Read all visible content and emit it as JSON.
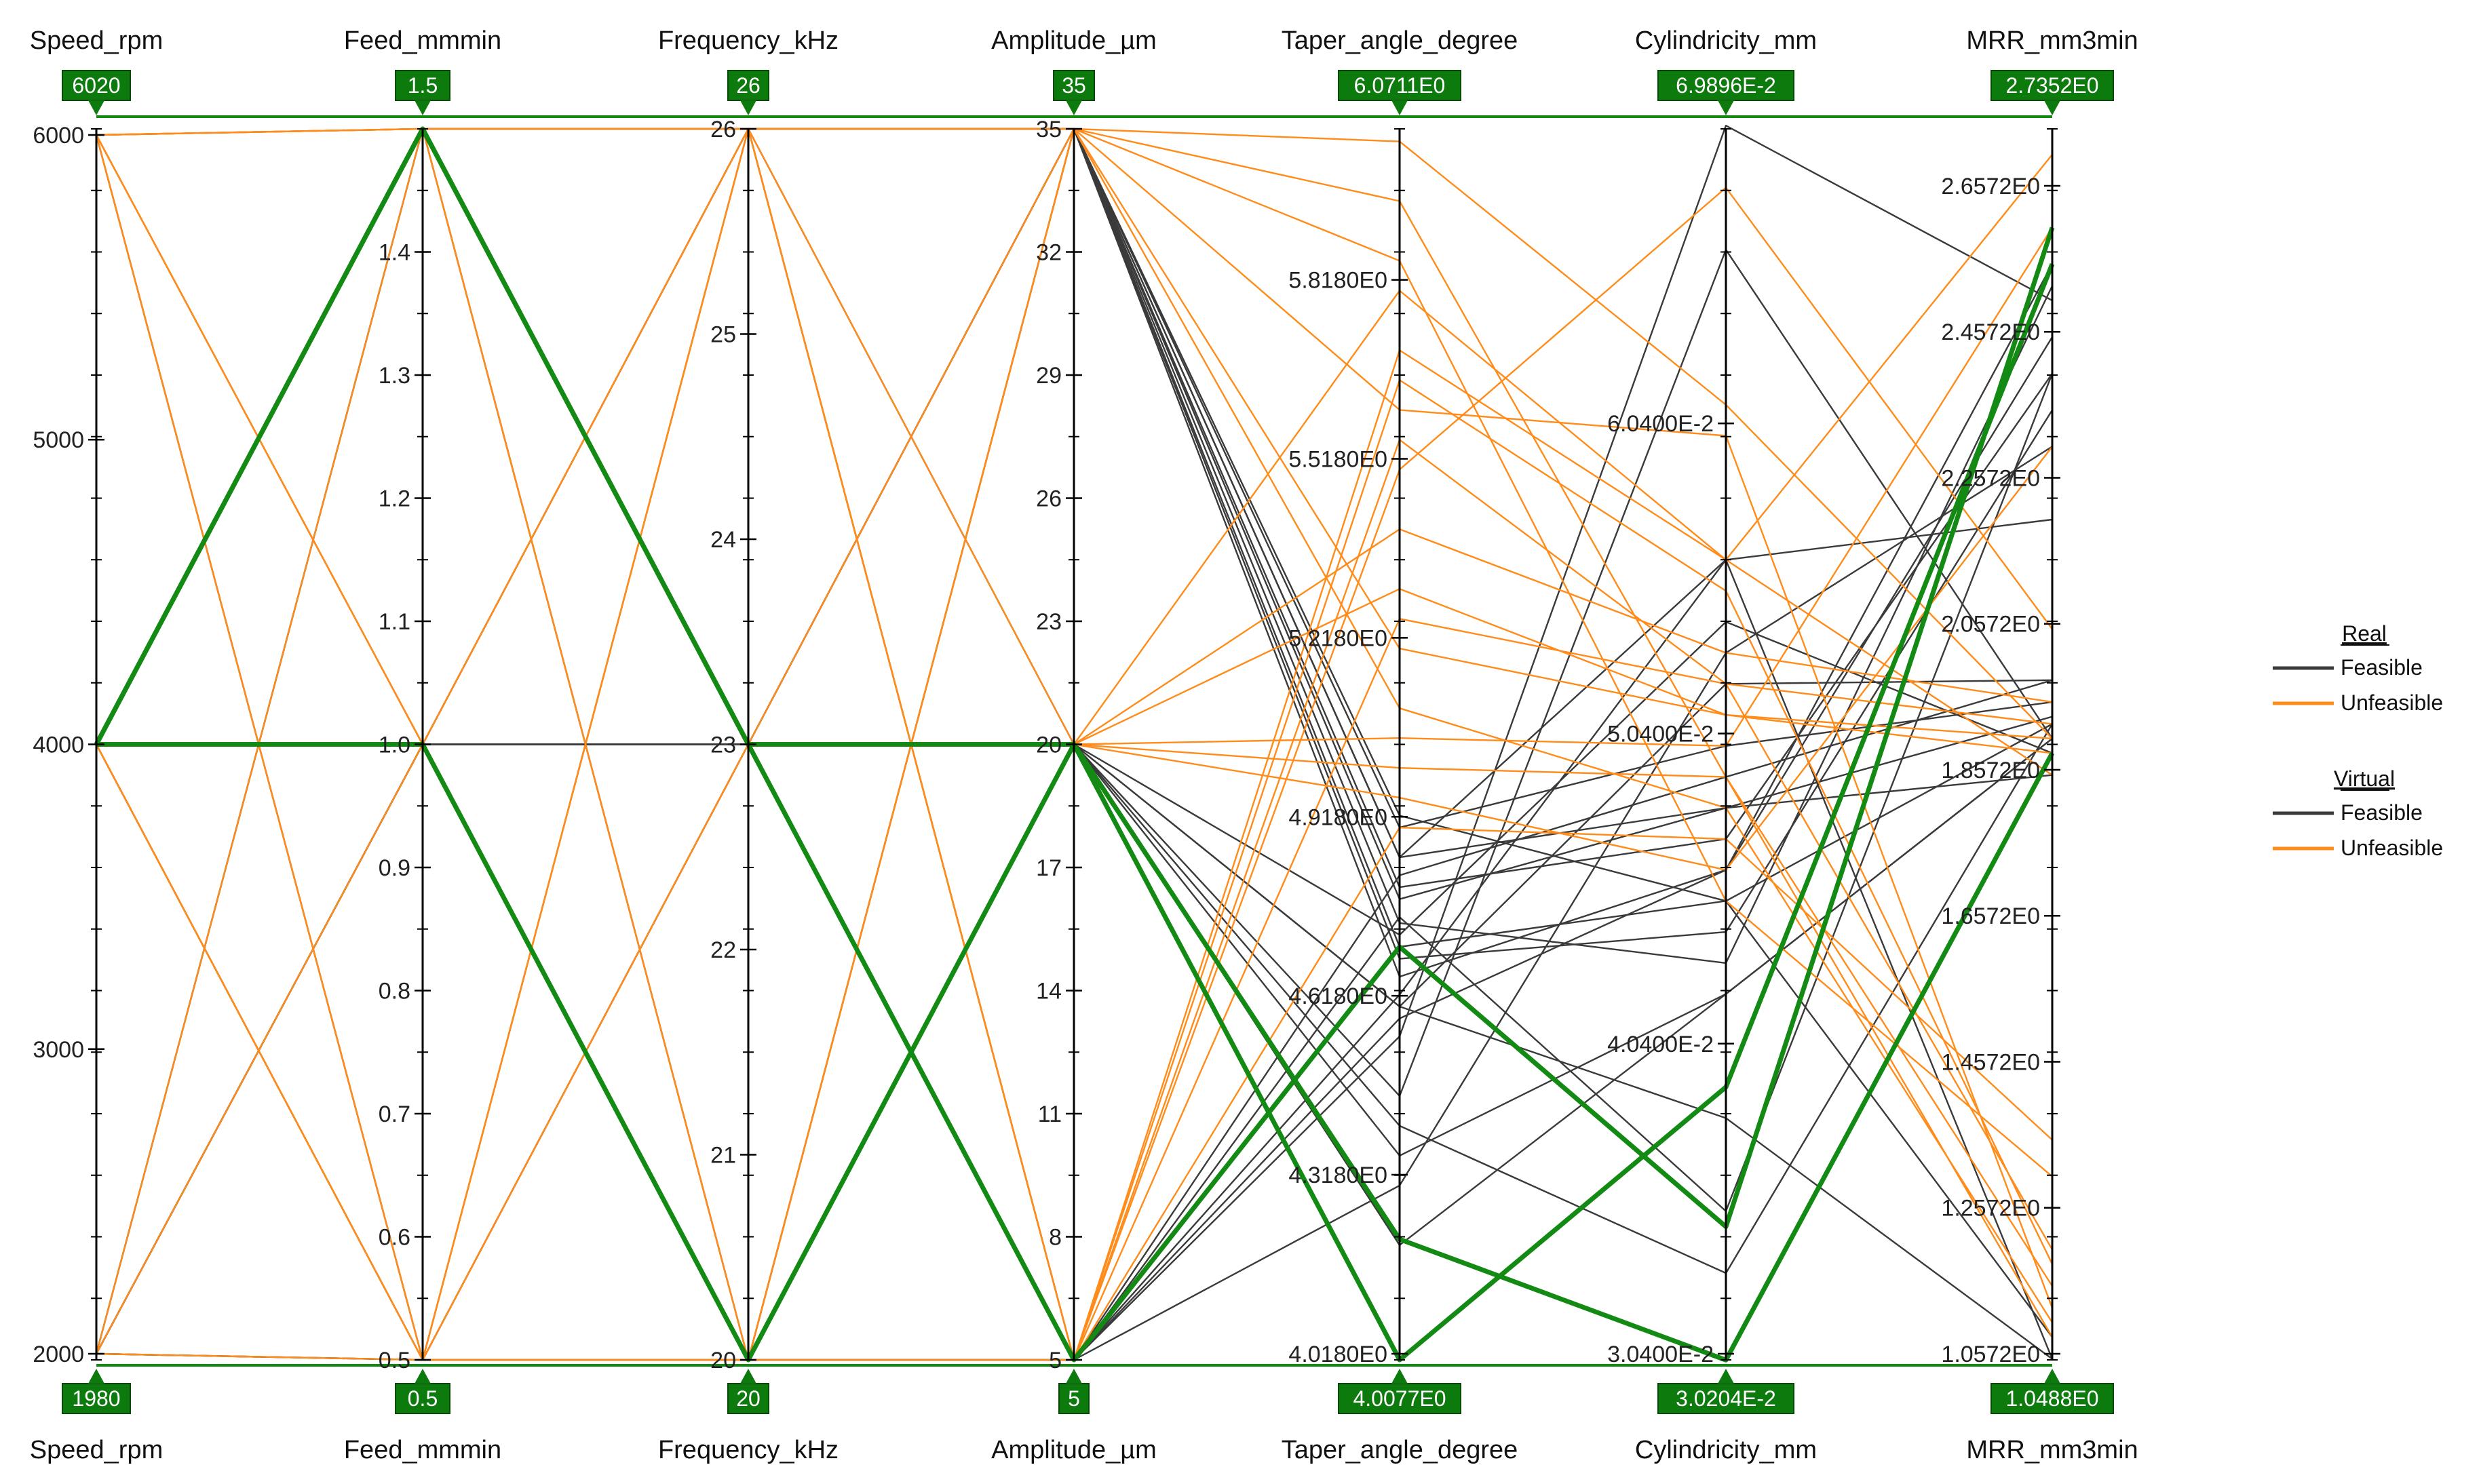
{
  "chart_data": {
    "type": "parallel-coordinates",
    "axes": [
      {
        "id": "speed",
        "label": "Speed_rpm",
        "min": 1980,
        "max": 6020,
        "max_badge": "6020",
        "min_badge": "1980",
        "ticks": [
          {
            "v": 2000,
            "t": "2000"
          },
          {
            "v": 3000,
            "t": "3000"
          },
          {
            "v": 4000,
            "t": "4000"
          },
          {
            "v": 5000,
            "t": "5000"
          },
          {
            "v": 6000,
            "t": "6000"
          }
        ]
      },
      {
        "id": "feed",
        "label": "Feed_mmmin",
        "min": 0.5,
        "max": 1.5,
        "max_badge": "1.5",
        "min_badge": "0.5",
        "ticks": [
          {
            "v": 0.5,
            "t": "0.5"
          },
          {
            "v": 0.6,
            "t": "0.6"
          },
          {
            "v": 0.7,
            "t": "0.7"
          },
          {
            "v": 0.8,
            "t": "0.8"
          },
          {
            "v": 0.9,
            "t": "0.9"
          },
          {
            "v": 1.0,
            "t": "1.0"
          },
          {
            "v": 1.1,
            "t": "1.1"
          },
          {
            "v": 1.2,
            "t": "1.2"
          },
          {
            "v": 1.3,
            "t": "1.3"
          },
          {
            "v": 1.4,
            "t": "1.4"
          }
        ]
      },
      {
        "id": "freq",
        "label": "Frequency_kHz",
        "min": 20,
        "max": 26,
        "max_badge": "26",
        "min_badge": "20",
        "ticks": [
          {
            "v": 20,
            "t": "20"
          },
          {
            "v": 21,
            "t": "21"
          },
          {
            "v": 22,
            "t": "22"
          },
          {
            "v": 23,
            "t": "23"
          },
          {
            "v": 24,
            "t": "24"
          },
          {
            "v": 25,
            "t": "25"
          },
          {
            "v": 26,
            "t": "26"
          }
        ]
      },
      {
        "id": "amp",
        "label": "Amplitude_µm",
        "min": 5,
        "max": 35,
        "max_badge": "35",
        "min_badge": "5",
        "ticks": [
          {
            "v": 5,
            "t": "5"
          },
          {
            "v": 8,
            "t": "8"
          },
          {
            "v": 11,
            "t": "11"
          },
          {
            "v": 14,
            "t": "14"
          },
          {
            "v": 17,
            "t": "17"
          },
          {
            "v": 20,
            "t": "20"
          },
          {
            "v": 23,
            "t": "23"
          },
          {
            "v": 26,
            "t": "26"
          },
          {
            "v": 29,
            "t": "29"
          },
          {
            "v": 32,
            "t": "32"
          },
          {
            "v": 35,
            "t": "35"
          }
        ]
      },
      {
        "id": "taper",
        "label": "Taper_angle_degree",
        "min": 4.0077,
        "max": 6.0711,
        "max_badge": "6.0711E0",
        "min_badge": "4.0077E0",
        "ticks": [
          {
            "v": 4.018,
            "t": "4.0180E0"
          },
          {
            "v": 4.318,
            "t": "4.3180E0"
          },
          {
            "v": 4.618,
            "t": "4.6180E0"
          },
          {
            "v": 4.918,
            "t": "4.9180E0"
          },
          {
            "v": 5.218,
            "t": "5.2180E0"
          },
          {
            "v": 5.518,
            "t": "5.5180E0"
          },
          {
            "v": 5.818,
            "t": "5.8180E0"
          }
        ]
      },
      {
        "id": "cyl",
        "label": "Cylindricity_mm",
        "min": 0.030204,
        "max": 0.069896,
        "max_badge": "6.9896E-2",
        "min_badge": "3.0204E-2",
        "ticks": [
          {
            "v": 0.0304,
            "t": "3.0400E-2"
          },
          {
            "v": 0.0404,
            "t": "4.0400E-2"
          },
          {
            "v": 0.0504,
            "t": "5.0400E-2"
          },
          {
            "v": 0.0604,
            "t": "6.0400E-2"
          }
        ]
      },
      {
        "id": "mrr",
        "label": "MRR_mm3min",
        "min": 1.0488,
        "max": 2.7352,
        "max_badge": "2.7352E0",
        "min_badge": "1.0488E0",
        "ticks": [
          {
            "v": 1.0572,
            "t": "1.0572E0"
          },
          {
            "v": 1.2572,
            "t": "1.2572E0"
          },
          {
            "v": 1.4572,
            "t": "1.4572E0"
          },
          {
            "v": 1.6572,
            "t": "1.6572E0"
          },
          {
            "v": 1.8572,
            "t": "1.8572E0"
          },
          {
            "v": 2.0572,
            "t": "2.0572E0"
          },
          {
            "v": 2.2572,
            "t": "2.2572E0"
          },
          {
            "v": 2.4572,
            "t": "2.4572E0"
          },
          {
            "v": 2.6572,
            "t": "2.6572E0"
          }
        ]
      }
    ],
    "legend": {
      "groups": [
        {
          "title": "Real",
          "items": [
            {
              "label": "Feasible",
              "color": "#3a3a3a"
            },
            {
              "label": "Unfeasible",
              "color": "#ff8c1a"
            }
          ]
        },
        {
          "title": "Virtual",
          "items": [
            {
              "label": "Feasible",
              "color": "#3a3a3a"
            },
            {
              "label": "Unfeasible",
              "color": "#ff8c1a"
            }
          ]
        }
      ]
    },
    "colors": {
      "feasible": "#3a3a3a",
      "unfeasible": "#ff8c1a",
      "highlight": "#138a13",
      "badge": "#0d7a0d",
      "axis": "#000000",
      "frame": "#138a13"
    },
    "series": [
      {
        "name": "Feasible",
        "category": "feasible",
        "lines": [
          [
            2000,
            1.0,
            23,
            20,
            4.6,
            0.052,
            1.98
          ],
          [
            2000,
            0.5,
            20,
            35,
            4.85,
            0.048,
            1.93
          ],
          [
            4000,
            1.5,
            26,
            5,
            4.55,
            0.07,
            2.5
          ],
          [
            4000,
            1.0,
            23,
            20,
            4.72,
            0.054,
            1.88
          ],
          [
            6000,
            0.5,
            26,
            35,
            4.65,
            0.046,
            2.45
          ],
          [
            2000,
            1.5,
            23,
            35,
            4.8,
            0.047,
            2.4
          ],
          [
            4000,
            0.5,
            20,
            5,
            4.3,
            0.053,
            2.3
          ],
          [
            4000,
            1.0,
            26,
            35,
            4.7,
            0.045,
            1.92
          ],
          [
            2000,
            0.5,
            23,
            20,
            4.45,
            0.066,
            1.9
          ],
          [
            6000,
            1.0,
            20,
            5,
            4.75,
            0.035,
            2.4
          ],
          [
            4000,
            1.5,
            23,
            35,
            4.9,
            0.05,
            1.95
          ],
          [
            2000,
            1.0,
            20,
            20,
            4.6,
            0.038,
            1.05
          ],
          [
            4000,
            1.0,
            26,
            5,
            4.82,
            0.049,
            1.98
          ],
          [
            6000,
            1.5,
            20,
            35,
            4.68,
            0.044,
            2.35
          ],
          [
            4000,
            0.5,
            23,
            20,
            4.2,
            0.042,
            1.9
          ],
          [
            2000,
            1.0,
            26,
            35,
            4.85,
            0.056,
            1.05
          ],
          [
            4000,
            1.0,
            23,
            5,
            4.58,
            0.046,
            2.55
          ],
          [
            4000,
            1.5,
            20,
            35,
            4.78,
            0.048,
            1.85
          ],
          [
            6000,
            0.5,
            23,
            20,
            4.4,
            0.033,
            1.92
          ],
          [
            2000,
            1.5,
            26,
            5,
            4.62,
            0.056,
            2.2
          ],
          [
            4000,
            1.0,
            20,
            35,
            4.92,
            0.045,
            1.08
          ],
          [
            4000,
            0.5,
            26,
            20,
            4.35,
            0.042,
            1.9
          ],
          [
            2000,
            1.0,
            23,
            35,
            4.74,
            0.043,
            2.52
          ]
        ]
      },
      {
        "name": "Unfeasible",
        "category": "unfeasible",
        "lines": [
          [
            6000,
            0.5,
            20,
            35,
            6.05,
            0.061,
            1.9
          ],
          [
            6000,
            1.5,
            26,
            20,
            5.8,
            0.056,
            2.7
          ],
          [
            4000,
            0.5,
            26,
            5,
            5.55,
            0.052,
            1.2
          ],
          [
            6000,
            1.0,
            20,
            35,
            5.95,
            0.049,
            1.15
          ],
          [
            4000,
            0.5,
            23,
            20,
            5.3,
            0.051,
            1.9
          ],
          [
            2000,
            1.5,
            20,
            5,
            5.7,
            0.056,
            1.85
          ],
          [
            6000,
            0.5,
            26,
            35,
            5.1,
            0.048,
            1.1
          ],
          [
            4000,
            1.0,
            20,
            20,
            5.4,
            0.053,
            1.95
          ],
          [
            6000,
            1.5,
            23,
            5,
            4.9,
            0.047,
            1.35
          ],
          [
            2000,
            0.5,
            26,
            35,
            5.6,
            0.06,
            1.12
          ],
          [
            4000,
            1.5,
            20,
            20,
            5.05,
            0.05,
            2.6
          ],
          [
            6000,
            1.0,
            26,
            5,
            5.25,
            0.052,
            1.92
          ],
          [
            4000,
            0.5,
            20,
            35,
            5.85,
            0.045,
            1.3
          ],
          [
            6000,
            1.5,
            23,
            20,
            5.0,
            0.049,
            1.08
          ],
          [
            2000,
            1.0,
            26,
            5,
            5.5,
            0.068,
            2.05
          ],
          [
            4000,
            0.5,
            23,
            35,
            5.2,
            0.051,
            1.88
          ],
          [
            6000,
            1.0,
            20,
            20,
            4.95,
            0.046,
            2.3
          ],
          [
            4000,
            1.5,
            26,
            5,
            5.65,
            0.055,
            1.18
          ]
        ]
      },
      {
        "name": "Highlighted",
        "category": "highlight",
        "lines": [
          [
            4000,
            1.5,
            23,
            5,
            4.7,
            0.0345,
            2.6
          ],
          [
            4000,
            1.0,
            20,
            20,
            4.21,
            0.0302,
            1.88
          ],
          [
            4000,
            1.5,
            23,
            20,
            4.0077,
            0.039,
            2.55
          ]
        ]
      }
    ]
  }
}
